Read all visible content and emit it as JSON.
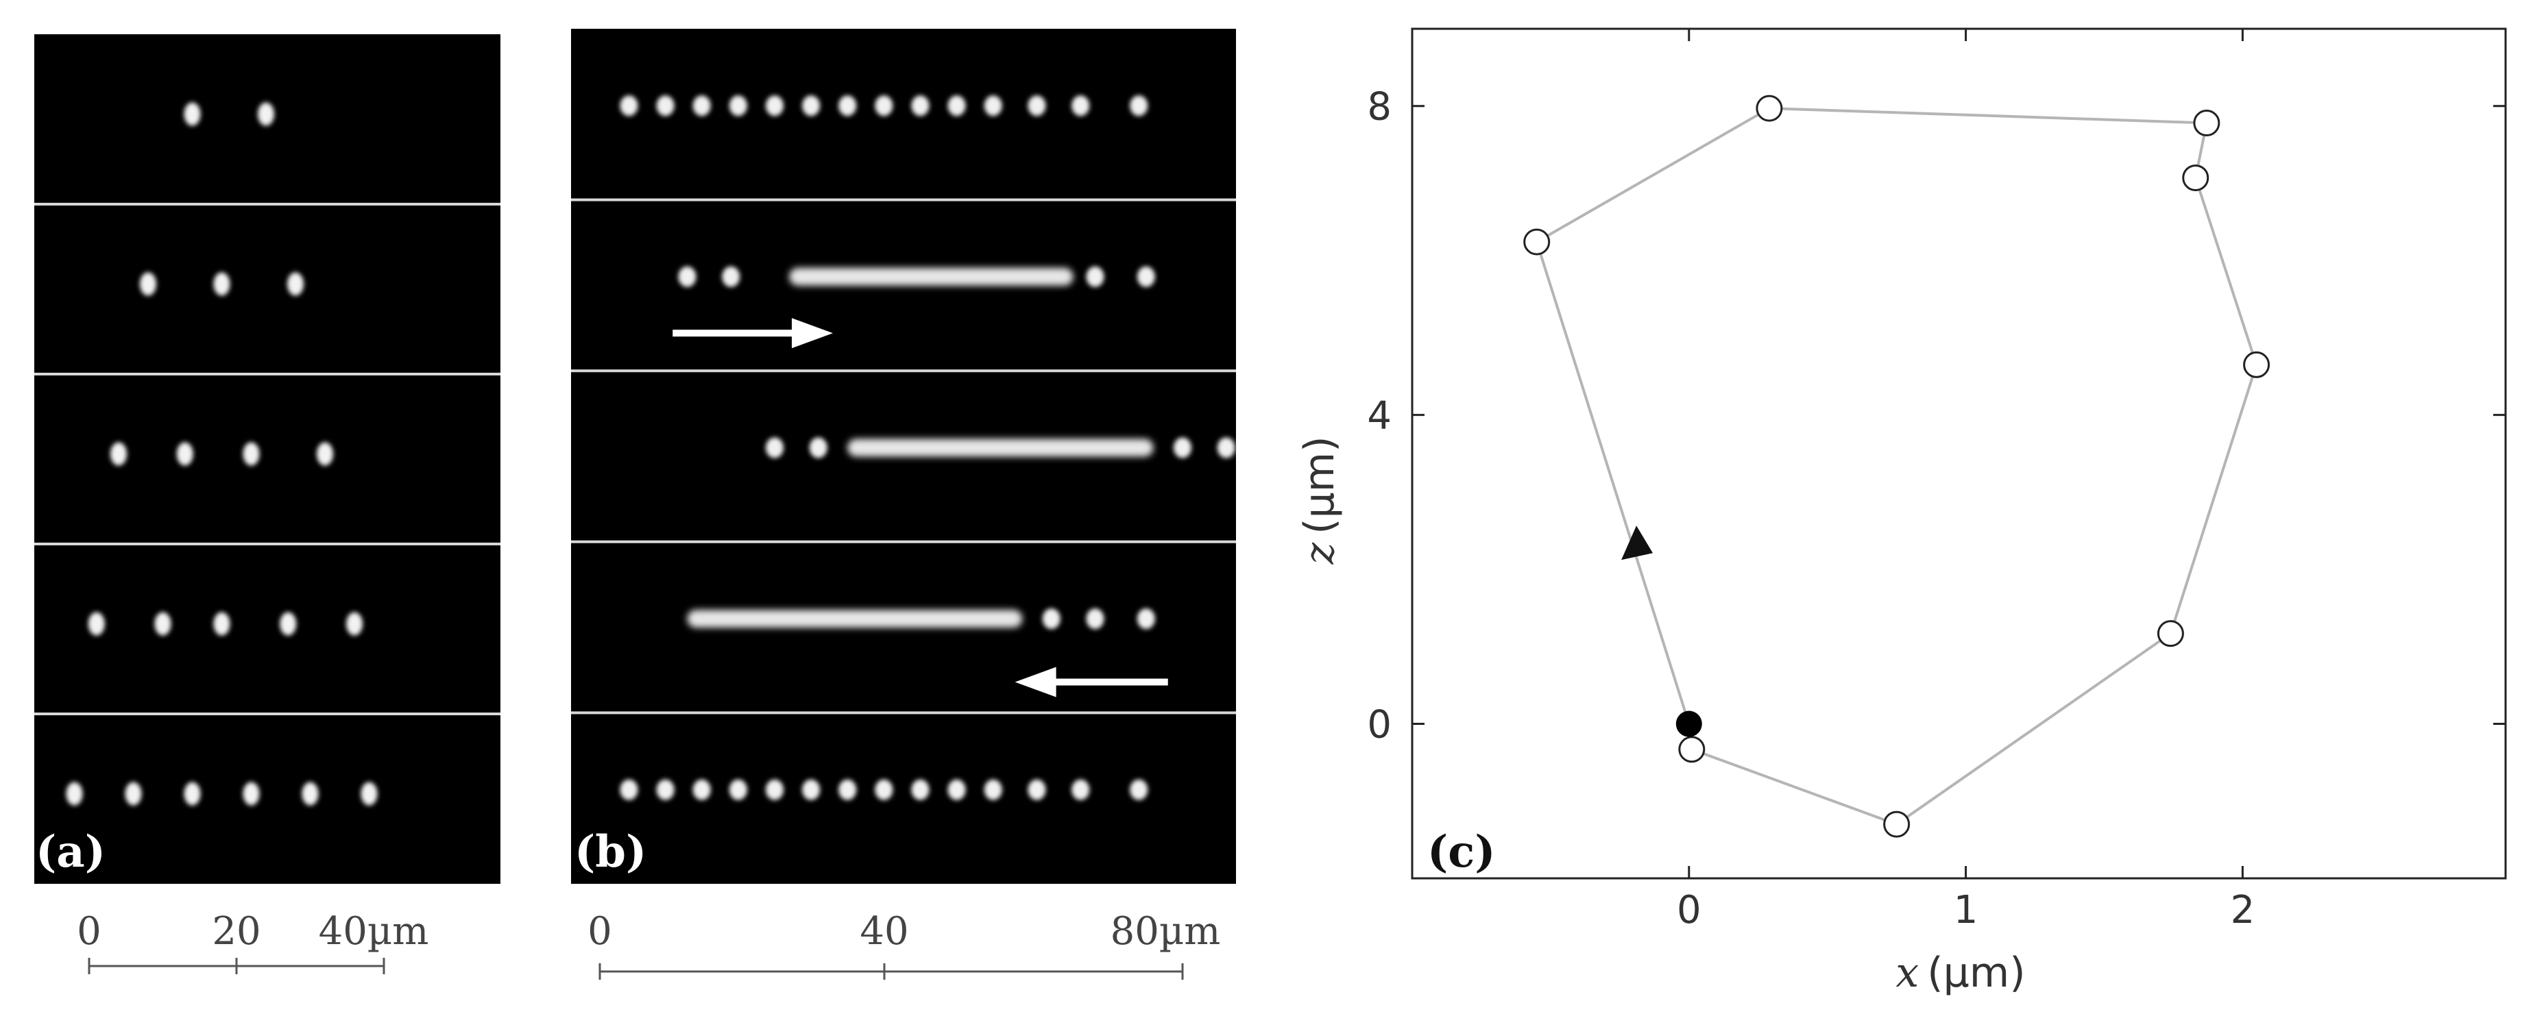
{
  "figure": {
    "panel_a": {
      "label": "(a)",
      "frames": [
        {
          "spots": [
            18,
            28
          ]
        },
        {
          "spots": [
            12,
            22,
            32
          ]
        },
        {
          "spots": [
            8,
            17,
            26,
            36
          ]
        },
        {
          "spots": [
            5,
            14,
            22,
            31,
            40
          ]
        },
        {
          "spots": [
            2,
            10,
            18,
            26,
            34,
            42
          ]
        }
      ],
      "scale": {
        "ticks": [
          "0",
          "20",
          "40µm"
        ]
      }
    },
    "panel_b": {
      "label": "(b)",
      "frames": [
        {
          "spots": [
            4,
            9,
            14,
            19,
            24,
            29,
            34,
            39,
            44,
            49,
            54,
            60,
            66,
            74
          ],
          "streak": null,
          "arrow": null
        },
        {
          "spots": [
            12,
            18,
            68,
            75
          ],
          "streak": [
            26,
            65
          ],
          "arrow": "right"
        },
        {
          "spots": [
            24,
            30,
            80,
            86
          ],
          "streak": [
            34,
            76
          ],
          "arrow": null
        },
        {
          "spots": [
            62,
            68,
            75
          ],
          "streak": [
            12,
            58
          ],
          "arrow": "left"
        },
        {
          "spots": [
            4,
            9,
            14,
            19,
            24,
            29,
            34,
            39,
            44,
            49,
            54,
            60,
            66,
            74
          ],
          "streak": null,
          "arrow": null
        }
      ],
      "scale": {
        "ticks": [
          "0",
          "40",
          "80µm"
        ]
      }
    },
    "panel_c": {
      "label": "(c)",
      "xlabel_var": "x",
      "xlabel_unit": "(µm)",
      "ylabel_var": "z",
      "ylabel_unit": "(µm)",
      "xticks": [
        "0",
        "1",
        "2"
      ],
      "yticks": [
        "0",
        "4",
        "8"
      ]
    }
  },
  "chart_data": {
    "type": "line",
    "title": "",
    "xlabel": "x (µm)",
    "ylabel": "z (µm)",
    "xlim": [
      -1.0,
      2.95
    ],
    "ylim": [
      -2.0,
      9.0
    ],
    "grid": false,
    "series": [
      {
        "points": [
          {
            "x": 0.01,
            "y": -0.33
          },
          {
            "x": 0.75,
            "y": -1.3
          },
          {
            "x": 1.74,
            "y": 1.17
          },
          {
            "x": 2.05,
            "y": 4.65
          },
          {
            "x": 1.83,
            "y": 7.07
          },
          {
            "x": 1.87,
            "y": 7.78
          },
          {
            "x": 0.29,
            "y": 7.97
          },
          {
            "x": -0.55,
            "y": 6.24
          },
          {
            "x": 0.0,
            "y": 0.0
          }
        ]
      }
    ],
    "start_point": {
      "x": 0.0,
      "y": 0.0
    },
    "direction_arrow": {
      "x": -0.19,
      "y": 2.3
    }
  }
}
